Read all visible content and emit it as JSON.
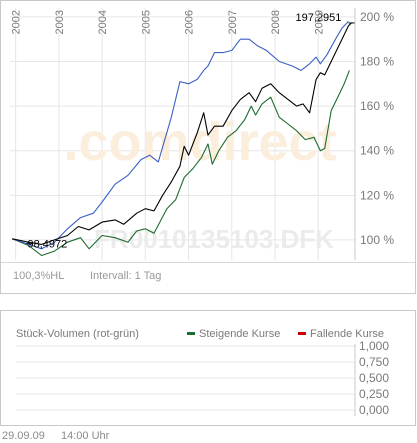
{
  "chart_data": [
    {
      "type": "line",
      "watermark_logo": ".comdirect",
      "watermark_symbol": "FR0010135103.DFK",
      "x_ticks": [
        "2002",
        "2003",
        "2004",
        "2005",
        "2006",
        "2007",
        "2008",
        "2009"
      ],
      "y_ticks": [
        "200 %",
        "180 %",
        "160 %",
        "140 %",
        "120 %",
        "100 %"
      ],
      "ylim": [
        91,
        204
      ],
      "grid": true,
      "series": [
        {
          "color": "#000000",
          "values": [
            [
              2001.92,
              100.5
            ],
            [
              2002.3,
              99
            ],
            [
              2002.6,
              98
            ],
            [
              2002.9,
              100
            ],
            [
              2003.2,
              102
            ],
            [
              2003.45,
              106
            ],
            [
              2003.7,
              104.5
            ],
            [
              2004.0,
              108
            ],
            [
              2004.3,
              109
            ],
            [
              2004.5,
              107
            ],
            [
              2004.8,
              112
            ],
            [
              2005.0,
              114
            ],
            [
              2005.2,
              113
            ],
            [
              2005.4,
              120
            ],
            [
              2005.6,
              126
            ],
            [
              2005.8,
              133
            ],
            [
              2005.9,
              142
            ],
            [
              2006.0,
              138
            ],
            [
              2006.2,
              148
            ],
            [
              2006.35,
              157
            ],
            [
              2006.45,
              147
            ],
            [
              2006.6,
              151
            ],
            [
              2006.8,
              151
            ],
            [
              2007.0,
              158
            ],
            [
              2007.2,
              163
            ],
            [
              2007.4,
              166
            ],
            [
              2007.55,
              162
            ],
            [
              2007.7,
              168
            ],
            [
              2007.9,
              170
            ],
            [
              2008.1,
              166
            ],
            [
              2008.3,
              163
            ],
            [
              2008.5,
              160
            ],
            [
              2008.65,
              161
            ],
            [
              2008.8,
              157
            ],
            [
              2008.95,
              172
            ],
            [
              2009.05,
              175
            ],
            [
              2009.15,
              174
            ],
            [
              2009.4,
              184
            ],
            [
              2009.55,
              190
            ],
            [
              2009.7,
              196
            ],
            [
              2009.77,
              197.3
            ]
          ]
        },
        {
          "color": "#3b5fc4",
          "values": [
            [
              2001.92,
              100.5
            ],
            [
              2002.3,
              98
            ],
            [
              2002.6,
              96
            ],
            [
              2002.9,
              99
            ],
            [
              2003.2,
              105
            ],
            [
              2003.5,
              110
            ],
            [
              2003.8,
              112
            ],
            [
              2004.0,
              117
            ],
            [
              2004.3,
              125
            ],
            [
              2004.6,
              129
            ],
            [
              2004.9,
              136
            ],
            [
              2005.1,
              138
            ],
            [
              2005.3,
              135
            ],
            [
              2005.6,
              155
            ],
            [
              2005.8,
              171
            ],
            [
              2006.0,
              170
            ],
            [
              2006.2,
              172
            ],
            [
              2006.35,
              176
            ],
            [
              2006.45,
              178
            ],
            [
              2006.6,
              184
            ],
            [
              2006.8,
              184
            ],
            [
              2007.0,
              185
            ],
            [
              2007.2,
              190
            ],
            [
              2007.4,
              190
            ],
            [
              2007.6,
              187
            ],
            [
              2007.8,
              185
            ],
            [
              2008.1,
              180
            ],
            [
              2008.4,
              178
            ],
            [
              2008.6,
              176
            ],
            [
              2008.8,
              179
            ],
            [
              2008.95,
              182
            ],
            [
              2009.05,
              179
            ],
            [
              2009.2,
              183
            ],
            [
              2009.4,
              190
            ],
            [
              2009.55,
              195
            ],
            [
              2009.7,
              198
            ]
          ]
        },
        {
          "color": "#1e6b2e",
          "values": [
            [
              2001.92,
              100.5
            ],
            [
              2002.3,
              97.5
            ],
            [
              2002.6,
              93
            ],
            [
              2002.9,
              95
            ],
            [
              2003.2,
              99
            ],
            [
              2003.5,
              101
            ],
            [
              2003.7,
              96
            ],
            [
              2004.0,
              102
            ],
            [
              2004.3,
              101
            ],
            [
              2004.6,
              99
            ],
            [
              2004.8,
              104
            ],
            [
              2005.0,
              105
            ],
            [
              2005.2,
              103
            ],
            [
              2005.5,
              114
            ],
            [
              2005.7,
              118
            ],
            [
              2005.9,
              128
            ],
            [
              2006.1,
              132
            ],
            [
              2006.3,
              137
            ],
            [
              2006.45,
              143
            ],
            [
              2006.55,
              134
            ],
            [
              2006.7,
              140
            ],
            [
              2006.9,
              146
            ],
            [
              2007.1,
              149
            ],
            [
              2007.3,
              154
            ],
            [
              2007.45,
              160
            ],
            [
              2007.55,
              156
            ],
            [
              2007.7,
              161
            ],
            [
              2007.9,
              164
            ],
            [
              2008.1,
              155
            ],
            [
              2008.3,
              152
            ],
            [
              2008.5,
              149
            ],
            [
              2008.7,
              145
            ],
            [
              2008.9,
              146
            ],
            [
              2009.05,
              140
            ],
            [
              2009.15,
              141
            ],
            [
              2009.3,
              158
            ],
            [
              2009.5,
              166
            ],
            [
              2009.6,
              170
            ],
            [
              2009.72,
              176
            ]
          ]
        }
      ],
      "annotations": [
        {
          "label": "197,2951",
          "x": 2009.77,
          "y": 197.3
        },
        {
          "label": "98,4972",
          "x": 2002.32,
          "y": 98.5
        }
      ],
      "footer_left": "100,3%HL",
      "footer_interval": "Intervall: 1 Tag"
    },
    {
      "type": "bar",
      "title": "Stück-Volumen (rot-grün)",
      "legend": [
        {
          "label": "Steigende Kurse",
          "color": "#1e6b2e"
        },
        {
          "label": "Fallende Kurse",
          "color": "#cc0000"
        }
      ],
      "y_ticks": [
        "1,000",
        "0,750",
        "0,500",
        "0,250",
        "0,000"
      ],
      "ylim": [
        0,
        1
      ],
      "values": []
    }
  ],
  "timestamp_date": "29.09.09",
  "timestamp_time": "14:00 Uhr"
}
